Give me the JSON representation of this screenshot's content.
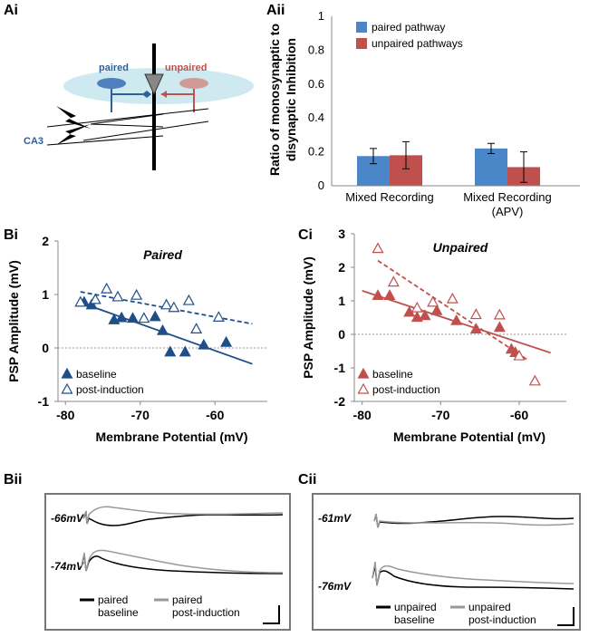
{
  "panels": {
    "ai": "Ai",
    "aii": "Aii",
    "bi": "Bi",
    "ci": "Ci",
    "bii": "Bii",
    "cii": "Cii"
  },
  "diagram": {
    "paired": "paired",
    "unpaired": "unpaired",
    "region": "CA3",
    "paired_color": "#2e5f97",
    "unpaired_color": "#c0504d"
  },
  "traces": {
    "bii": {
      "trace_labels": [
        "-66mV",
        "-74mV"
      ],
      "legend": [
        {
          "line1": "paired",
          "line2": "baseline",
          "color": "#000000"
        },
        {
          "line1": "paired",
          "line2": "post-induction",
          "color": "#999999"
        }
      ]
    },
    "cii": {
      "trace_labels": [
        "-61mV",
        "-76mV"
      ],
      "legend": [
        {
          "line1": "unpaired",
          "line2": "baseline",
          "color": "#000000"
        },
        {
          "line1": "unpaired",
          "line2": "post-induction",
          "color": "#999999"
        }
      ]
    }
  },
  "chart_data": [
    {
      "id": "aii",
      "type": "bar",
      "ylabel_line1": "Ratio of monosynaptic to",
      "ylabel_line2": "disynaptic Inhibition",
      "ylim": [
        0,
        1
      ],
      "yticks": [
        "0",
        "0.2",
        "0.4",
        "0.6",
        "0.8",
        "1"
      ],
      "ytick_values": [
        0,
        0.2,
        0.4,
        0.6,
        0.8,
        1
      ],
      "categories": [
        {
          "line1": "Mixed Recording",
          "line2": ""
        },
        {
          "line1": "Mixed Recording",
          "line2": "(APV)"
        }
      ],
      "series": [
        {
          "name": "paired pathway",
          "color": "#4a86c8",
          "values": [
            0.175,
            0.22
          ],
          "errors": [
            0.045,
            0.03
          ]
        },
        {
          "name": "unpaired pathways",
          "color": "#c0504d",
          "values": [
            0.18,
            0.11
          ],
          "errors": [
            0.08,
            0.09
          ]
        }
      ]
    },
    {
      "id": "bi",
      "type": "scatter",
      "title": "Paired",
      "xlabel": "Membrane Potential (mV)",
      "ylabel": "PSP Amplitude (mV)",
      "xlim": [
        -81,
        -53
      ],
      "ylim": [
        -1,
        2
      ],
      "xticks": [
        "-80",
        "-70",
        "-60"
      ],
      "xtick_values": [
        -80,
        -70,
        -60
      ],
      "yticks": [
        "-1",
        "0",
        "1",
        "2"
      ],
      "ytick_values": [
        -1,
        0,
        1,
        2
      ],
      "color": "#1f4e89",
      "series": [
        {
          "name": "baseline",
          "filled": true,
          "points": [
            [
              -77.5,
              0.85
            ],
            [
              -76.5,
              0.8
            ],
            [
              -73.5,
              0.52
            ],
            [
              -72.5,
              0.56
            ],
            [
              -71,
              0.55
            ],
            [
              -68,
              0.58
            ],
            [
              -67,
              0.32
            ],
            [
              -66,
              -0.08
            ],
            [
              -64,
              -0.08
            ],
            [
              -61.5,
              0.05
            ],
            [
              -58.5,
              0.1
            ]
          ],
          "fit": [
            [
              -78,
              0.85
            ],
            [
              -55,
              -0.3
            ]
          ]
        },
        {
          "name": "post-induction",
          "filled": false,
          "points": [
            [
              -78,
              0.85
            ],
            [
              -76,
              0.9
            ],
            [
              -74.5,
              1.1
            ],
            [
              -73,
              0.95
            ],
            [
              -70.5,
              0.98
            ],
            [
              -69.5,
              0.55
            ],
            [
              -66.5,
              0.8
            ],
            [
              -65.5,
              0.75
            ],
            [
              -62.5,
              0.35
            ],
            [
              -59.5,
              0.57
            ],
            [
              -63.5,
              0.88
            ]
          ],
          "fit": [
            [
              -78,
              1.05
            ],
            [
              -55,
              0.45
            ]
          ]
        }
      ]
    },
    {
      "id": "ci",
      "type": "scatter",
      "title": "Unpaired",
      "xlabel": "Membrane Potential (mV)",
      "ylabel": "PSP Amplitude (mV)",
      "xlim": [
        -81,
        -54
      ],
      "ylim": [
        -2,
        3
      ],
      "xticks": [
        "-80",
        "-70",
        "-60"
      ],
      "xtick_values": [
        -80,
        -70,
        -60
      ],
      "yticks": [
        "-2",
        "-1",
        "0",
        "1",
        "2",
        "3"
      ],
      "ytick_values": [
        -2,
        -1,
        0,
        1,
        2,
        3
      ],
      "color": "#c0504d",
      "series": [
        {
          "name": "baseline",
          "filled": true,
          "points": [
            [
              -78,
              1.15
            ],
            [
              -76.5,
              1.15
            ],
            [
              -74,
              0.65
            ],
            [
              -73,
              0.5
            ],
            [
              -72,
              0.55
            ],
            [
              -70.5,
              0.7
            ],
            [
              -68,
              0.4
            ],
            [
              -65.5,
              0.15
            ],
            [
              -62.5,
              0.2
            ],
            [
              -61,
              -0.45
            ],
            [
              -60.5,
              -0.55
            ]
          ],
          "fit": [
            [
              -80,
              1.3
            ],
            [
              -56,
              -0.55
            ]
          ]
        },
        {
          "name": "post-induction",
          "filled": false,
          "points": [
            [
              -78,
              2.55
            ],
            [
              -76,
              1.55
            ],
            [
              -73,
              0.78
            ],
            [
              -71,
              0.95
            ],
            [
              -68.5,
              1.05
            ],
            [
              -65.5,
              0.58
            ],
            [
              -62.5,
              0.57
            ],
            [
              -60,
              -0.65
            ],
            [
              -58,
              -1.4
            ]
          ],
          "fit": [
            [
              -78,
              2.2
            ],
            [
              -59,
              -0.75
            ]
          ]
        }
      ]
    }
  ]
}
